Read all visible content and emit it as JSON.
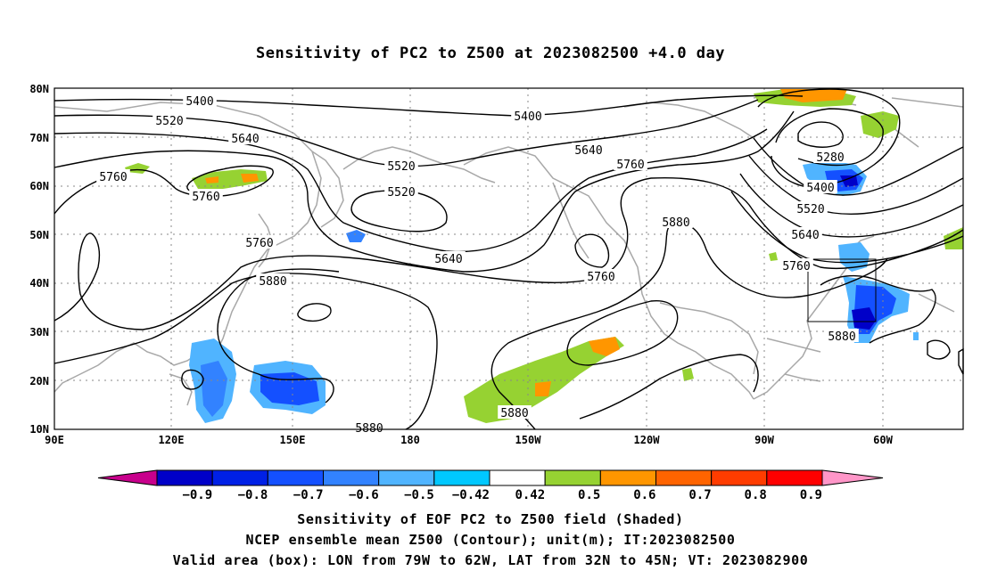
{
  "title": "Sensitivity of PC2 to Z500 at 2023082500 +4.0 day",
  "map": {
    "lat_labels": [
      "80N",
      "70N",
      "60N",
      "50N",
      "40N",
      "30N",
      "20N",
      "10N"
    ],
    "lon_labels": [
      "90E",
      "120E",
      "150E",
      "180",
      "150W",
      "120W",
      "90W",
      "60W"
    ],
    "contour_labels": [
      "5400",
      "5520",
      "5640",
      "5760",
      "5760",
      "5760",
      "5880",
      "5520",
      "5520",
      "5640",
      "5640",
      "5760",
      "5760",
      "5880",
      "5400",
      "5280",
      "5400",
      "5520",
      "5640",
      "5760",
      "5880",
      "5880",
      "5880"
    ],
    "valid_box": {
      "lon_from": "79W",
      "lon_to": "62W",
      "lat_from": "32N",
      "lat_to": "45N"
    }
  },
  "colorbar": {
    "labels": [
      "-0.9",
      "-0.8",
      "-0.7",
      "-0.6",
      "-0.5",
      "-0.42",
      "0.42",
      "0.5",
      "0.6",
      "0.7",
      "0.8",
      "0.9"
    ],
    "colors": [
      "#c8008c",
      "#0000c8",
      "#0020e6",
      "#1450ff",
      "#3282ff",
      "#50b4ff",
      "#00c8ff",
      "#ffffff",
      "#96d232",
      "#ff9600",
      "#ff6400",
      "#ff3c00",
      "#ff0000",
      "#ff96c8"
    ]
  },
  "captions": {
    "line1": "Sensitivity of EOF PC2 to Z500 field (Shaded)",
    "line2": "NCEP ensemble mean Z500 (Contour); unit(m); IT:2023082500",
    "line3": "Valid area (box): LON from 79W to 62W, LAT from 32N to 45N; VT: 2023082900"
  }
}
